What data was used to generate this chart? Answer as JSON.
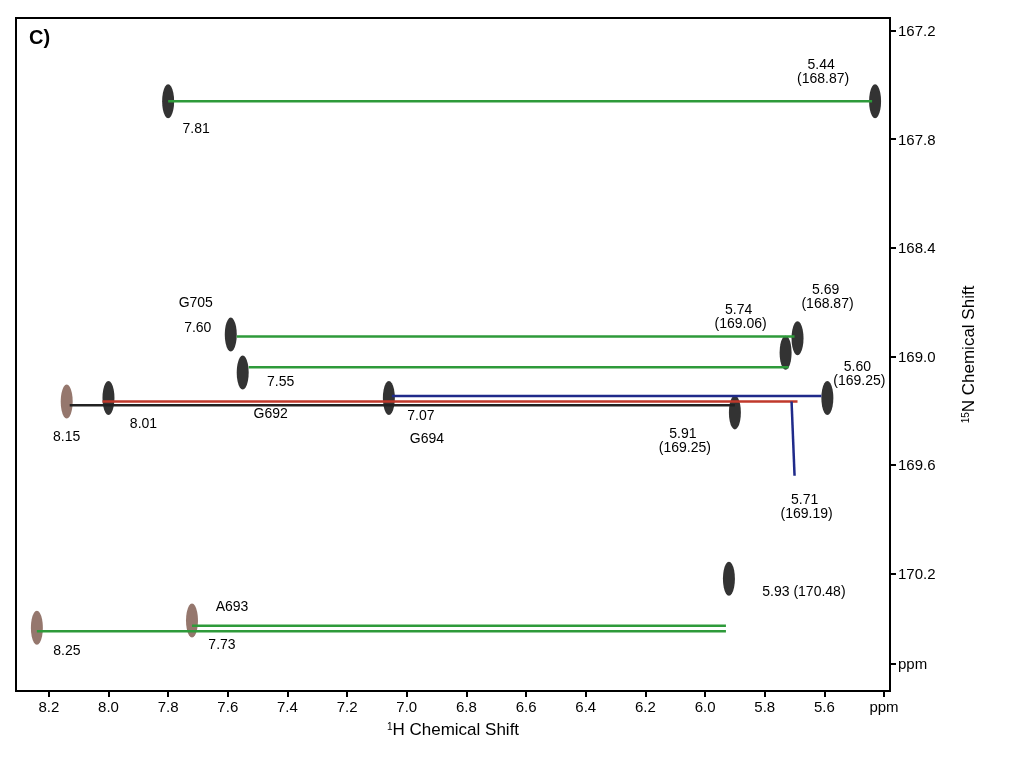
{
  "chart_data": {
    "type": "scatter",
    "title": "C)",
    "xlabel": "$^{1}$H Chemical Shift",
    "ylabel": "$^{15}$N Chemical Shift",
    "xlim": [
      8.31,
      5.38
    ],
    "ylim": [
      170.85,
      167.13
    ],
    "xticks": [
      8.2,
      {
        "value": 8,
        "label": "8.0"
      },
      7.8,
      7.6,
      7.4,
      7.2,
      {
        "value": 7,
        "label": "7.0"
      },
      6.8,
      6.6,
      6.4,
      6.2,
      {
        "value": 6,
        "label": "6.0"
      },
      5.8,
      5.6,
      {
        "value": 5.4,
        "label": "ppm"
      }
    ],
    "yticks": [
      167.2,
      167.8,
      168.4,
      {
        "value": 169,
        "label": "169.0"
      },
      169.6,
      170.2,
      {
        "value": 170.7,
        "label": "ppm"
      }
    ],
    "grid": false,
    "series": [
      {
        "type": "scatter",
        "marker": "circle",
        "x": [
          7.8,
          5.43,
          7.59,
          7.55,
          5.73,
          5.69,
          8.14,
          8.0,
          7.06,
          5.9,
          5.59,
          8.24,
          7.72,
          5.92
        ],
        "values": [
          167.59,
          167.59,
          168.88,
          169.09,
          168.98,
          168.9,
          169.25,
          169.23,
          169.23,
          169.31,
          169.23,
          170.5,
          170.46,
          170.23
        ],
        "colors": [
          "#000000",
          "#000000",
          "#000000",
          "#000000",
          "#000000",
          "#000000",
          "#7a5548",
          "#000000",
          "#000000",
          "#000000",
          "#000000",
          "#7a5548",
          "#7a5548",
          "#000000"
        ]
      },
      {
        "type": "line",
        "marker": "none",
        "color": "#2e9a3a",
        "x": [
          5.44,
          7.8
        ],
        "values": [
          167.59,
          167.59
        ]
      },
      {
        "type": "line",
        "marker": "none",
        "color": "#2e9a3a",
        "x": [
          5.7,
          7.57
        ],
        "values": [
          168.89,
          168.89
        ]
      },
      {
        "type": "line",
        "marker": "none",
        "color": "#2e9a3a",
        "x": [
          5.72,
          7.53
        ],
        "values": [
          169.06,
          169.06
        ]
      },
      {
        "type": "line",
        "marker": "none",
        "color": "#c0392b",
        "x": [
          5.69,
          8.02
        ],
        "values": [
          169.25,
          169.25
        ]
      },
      {
        "type": "line",
        "marker": "none",
        "color": "#222222",
        "x": [
          5.9,
          8.13
        ],
        "values": [
          169.27,
          169.27
        ]
      },
      {
        "type": "line",
        "marker": "none",
        "color": "#1f2a8a",
        "x": [
          5.61,
          7.05
        ],
        "values": [
          169.22,
          169.22
        ]
      },
      {
        "type": "line",
        "marker": "none",
        "color": "#1f2a8a",
        "x": [
          5.71,
          5.7
        ],
        "values": [
          169.25,
          169.66
        ]
      },
      {
        "type": "line",
        "marker": "none",
        "color": "#2e9a3a",
        "x": [
          5.93,
          7.72
        ],
        "values": [
          170.49,
          170.49
        ]
      },
      {
        "type": "line",
        "marker": "none",
        "color": "#2e9a3a",
        "x": [
          5.93,
          8.24
        ],
        "values": [
          170.52,
          170.52
        ]
      }
    ],
    "annotations": [
      {
        "text": "7.81",
        "x": 7.8,
        "y": 167.59
      },
      {
        "text": "5.44 (168.87)",
        "x": 5.43,
        "y": 167.59
      },
      {
        "text": "G705",
        "x": 7.59,
        "y": 168.88
      },
      {
        "text": "7.60",
        "x": 7.59,
        "y": 168.88
      },
      {
        "text": "7.55",
        "x": 7.55,
        "y": 169.09
      },
      {
        "text": "G692",
        "x": 7.55,
        "y": 169.09
      },
      {
        "text": "8.01",
        "x": 8.0,
        "y": 169.23
      },
      {
        "text": "8.15",
        "x": 8.14,
        "y": 169.25
      },
      {
        "text": "7.07",
        "x": 7.06,
        "y": 169.23
      },
      {
        "text": "G694",
        "x": 7.06,
        "y": 169.23
      },
      {
        "text": "5.91 (169.25)",
        "x": 5.9,
        "y": 169.31
      },
      {
        "text": "5.74 (169.06)",
        "x": 5.73,
        "y": 168.98
      },
      {
        "text": "5.69 (168.87)",
        "x": 5.69,
        "y": 168.9
      },
      {
        "text": "5.60 (169.25)",
        "x": 5.59,
        "y": 169.23
      },
      {
        "text": "5.71 (169.19)",
        "x": 5.7,
        "y": 169.66
      },
      {
        "text": "A693",
        "x": 7.72,
        "y": 170.46
      },
      {
        "text": "8.25",
        "x": 8.24,
        "y": 170.5
      },
      {
        "text": "7.73",
        "x": 7.72,
        "y": 170.46
      },
      {
        "text": "5.93 (170.48)",
        "x": 5.92,
        "y": 170.23
      }
    ]
  }
}
